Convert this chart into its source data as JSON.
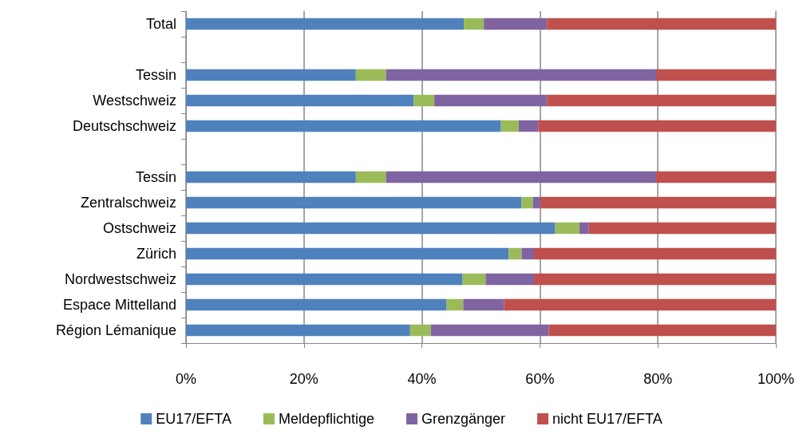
{
  "chart_data": {
    "type": "bar",
    "orientation": "horizontal",
    "stacked": true,
    "categories": [
      "Total",
      null,
      "Tessin",
      "Westschweiz",
      "Deutschschweiz",
      null,
      "Tessin",
      "Zentralschweiz",
      "Ostschweiz",
      "Zürich",
      "Nordwestschweiz",
      "Espace Mittelland",
      "Région Lémanique"
    ],
    "series": [
      {
        "name": "EU17/EFTA",
        "color": "#4f81bd",
        "values": [
          47.1,
          null,
          28.8,
          38.6,
          53.4,
          null,
          28.8,
          56.9,
          62.6,
          54.7,
          46.9,
          44.2,
          38.0
        ]
      },
      {
        "name": "Meldepflichtige",
        "color": "#9bbb59",
        "values": [
          3.4,
          null,
          5.1,
          3.5,
          3.0,
          null,
          5.1,
          1.9,
          4.1,
          2.2,
          3.9,
          2.8,
          3.5
        ]
      },
      {
        "name": "Grenzgänger",
        "color": "#8064a2",
        "values": [
          10.7,
          null,
          45.8,
          19.1,
          3.3,
          null,
          45.8,
          1.3,
          1.6,
          2.1,
          8.2,
          6.9,
          20.0
        ]
      },
      {
        "name": "nicht EU17/EFTA",
        "color": "#c0504d",
        "values": [
          38.8,
          null,
          20.3,
          38.8,
          40.3,
          null,
          20.3,
          39.9,
          31.7,
          41.0,
          41.0,
          46.1,
          38.5
        ]
      }
    ],
    "xlim": [
      0,
      100
    ],
    "xticks": [
      {
        "value": 0,
        "label": "0%"
      },
      {
        "value": 20,
        "label": "20%"
      },
      {
        "value": 40,
        "label": "40%"
      },
      {
        "value": 60,
        "label": "60%"
      },
      {
        "value": 80,
        "label": "80%"
      },
      {
        "value": 100,
        "label": "100%"
      }
    ],
    "grid": "x",
    "legend": "bottom"
  }
}
